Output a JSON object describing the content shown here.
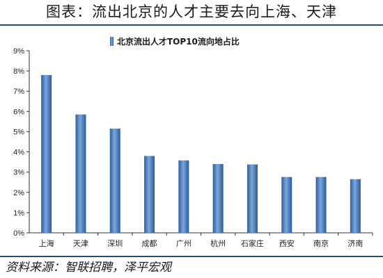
{
  "header": {
    "title": "图表：流出北京的人才主要去向上海、天津"
  },
  "footer": {
    "source": "资料来源：智联招聘，泽平宏观"
  },
  "chart_data": {
    "type": "bar",
    "legend": "北京流出人才TOP10流向地占比",
    "legend_position": "top-center",
    "categories": [
      "上海",
      "天津",
      "深圳",
      "成都",
      "广州",
      "杭州",
      "石家庄",
      "西安",
      "南京",
      "济南"
    ],
    "series": [
      {
        "name": "北京流出人才TOP10流向地占比",
        "values": [
          7.8,
          5.85,
          5.15,
          3.8,
          3.58,
          3.4,
          3.38,
          2.76,
          2.76,
          2.65
        ],
        "color": "#4a7fc1"
      }
    ],
    "y_ticks": [
      "0%",
      "1%",
      "2%",
      "3%",
      "4%",
      "5%",
      "6%",
      "7%",
      "8%",
      "9%"
    ],
    "ylim": [
      0,
      9
    ],
    "grid": false
  }
}
